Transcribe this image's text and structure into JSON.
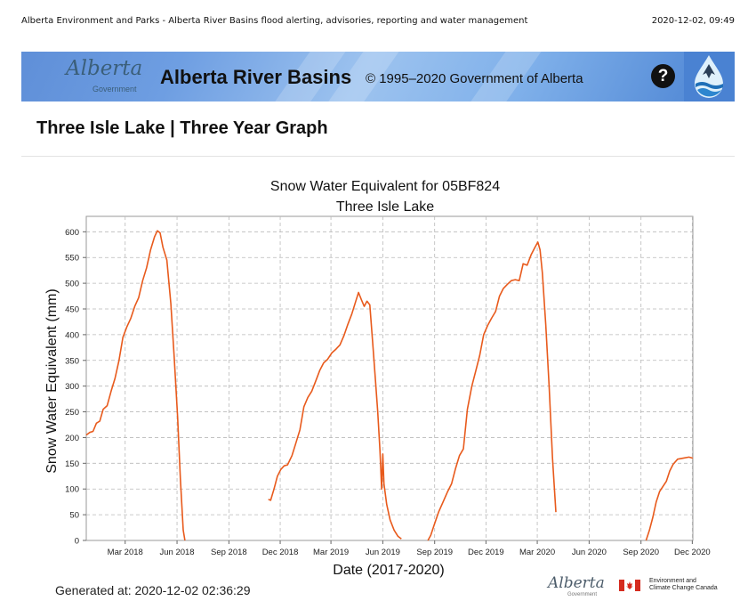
{
  "print_header": {
    "left": "Alberta Environment and Parks - Alberta River Basins flood alerting, advisories, reporting and water management",
    "right": "2020-12-02, 09:49"
  },
  "banner": {
    "logo_text": "Alberta",
    "logo_sub": "Government",
    "title": "Alberta River Basins",
    "copyright": "© 1995–2020 Government of Alberta",
    "help_label": "?"
  },
  "page_title": "Three Isle Lake | Three Year Graph",
  "generated": "Generated at: 2020-12-02 02:36:29",
  "footer": {
    "alberta_logo": "Alberta",
    "alberta_sub": "Government",
    "eccc_line1": "Environment and",
    "eccc_line2": "Climate Change Canada"
  },
  "colors": {
    "series": "#e85a1c",
    "grid": "#b9b9b9",
    "banner": "#6e9ee2"
  },
  "chart_data": {
    "type": "line",
    "title": "Snow Water Equivalent for 05BF824",
    "subtitle": "Three Isle Lake",
    "xlabel": "Date (2017-2020)",
    "ylabel": "Snow Water Equivalent (mm)",
    "x_range": [
      "2017-12-22",
      "2020-12-02"
    ],
    "ylim": [
      0,
      630
    ],
    "yticks": [
      0,
      50,
      100,
      150,
      200,
      250,
      300,
      350,
      400,
      450,
      500,
      550,
      600
    ],
    "xticks": [
      {
        "date": "2018-03-01",
        "label": "Mar 2018"
      },
      {
        "date": "2018-06-01",
        "label": "Jun 2018"
      },
      {
        "date": "2018-09-01",
        "label": "Sep 2018"
      },
      {
        "date": "2018-12-01",
        "label": "Dec 2018"
      },
      {
        "date": "2019-03-01",
        "label": "Mar 2019"
      },
      {
        "date": "2019-06-01",
        "label": "Jun 2019"
      },
      {
        "date": "2019-09-01",
        "label": "Sep 2019"
      },
      {
        "date": "2019-12-01",
        "label": "Dec 2019"
      },
      {
        "date": "2020-03-01",
        "label": "Mar 2020"
      },
      {
        "date": "2020-06-01",
        "label": "Jun 2020"
      },
      {
        "date": "2020-09-01",
        "label": "Sep 2020"
      },
      {
        "date": "2020-12-01",
        "label": "Dec 2020"
      }
    ],
    "grid": true,
    "series": [
      {
        "values": [
          [
            [
              "2017-12-22",
              205
            ],
            [
              "2017-12-28",
              210
            ],
            [
              "2018-01-03",
              212
            ],
            [
              "2018-01-09",
              228
            ],
            [
              "2018-01-15",
              232
            ],
            [
              "2018-01-21",
              255
            ],
            [
              "2018-01-28",
              262
            ],
            [
              "2018-02-04",
              290
            ],
            [
              "2018-02-11",
              315
            ],
            [
              "2018-02-18",
              350
            ],
            [
              "2018-02-25",
              395
            ],
            [
              "2018-03-04",
              415
            ],
            [
              "2018-03-11",
              432
            ],
            [
              "2018-03-18",
              455
            ],
            [
              "2018-03-25",
              472
            ],
            [
              "2018-04-01",
              505
            ],
            [
              "2018-04-08",
              530
            ],
            [
              "2018-04-15",
              565
            ],
            [
              "2018-04-22",
              590
            ],
            [
              "2018-04-27",
              602
            ],
            [
              "2018-05-02",
              598
            ],
            [
              "2018-05-07",
              570
            ],
            [
              "2018-05-14",
              545
            ],
            [
              "2018-05-21",
              460
            ],
            [
              "2018-05-27",
              355
            ],
            [
              "2018-06-02",
              240
            ],
            [
              "2018-06-07",
              120
            ],
            [
              "2018-06-12",
              20
            ],
            [
              "2018-06-15",
              0
            ]
          ],
          [
            [
              "2018-11-10",
              80
            ],
            [
              "2018-11-14",
              78
            ],
            [
              "2018-11-20",
              100
            ],
            [
              "2018-11-26",
              125
            ],
            [
              "2018-12-02",
              138
            ],
            [
              "2018-12-08",
              145
            ],
            [
              "2018-12-14",
              147
            ],
            [
              "2018-12-22",
              165
            ],
            [
              "2018-12-29",
              190
            ],
            [
              "2019-01-05",
              215
            ],
            [
              "2019-01-12",
              260
            ],
            [
              "2019-01-19",
              278
            ],
            [
              "2019-01-26",
              290
            ],
            [
              "2019-02-02",
              310
            ],
            [
              "2019-02-09",
              330
            ],
            [
              "2019-02-16",
              345
            ],
            [
              "2019-02-23",
              352
            ],
            [
              "2019-03-03",
              365
            ],
            [
              "2019-03-10",
              372
            ],
            [
              "2019-03-17",
              380
            ],
            [
              "2019-03-24",
              398
            ],
            [
              "2019-03-31",
              420
            ],
            [
              "2019-04-07",
              440
            ],
            [
              "2019-04-14",
              465
            ],
            [
              "2019-04-19",
              482
            ],
            [
              "2019-04-24",
              468
            ],
            [
              "2019-04-29",
              455
            ],
            [
              "2019-05-04",
              465
            ],
            [
              "2019-05-09",
              458
            ],
            [
              "2019-05-14",
              385
            ],
            [
              "2019-05-19",
              310
            ],
            [
              "2019-05-23",
              250
            ],
            [
              "2019-05-27",
              175
            ],
            [
              "2019-05-30",
              100
            ],
            [
              "2019-06-01",
              168
            ],
            [
              "2019-06-03",
              110
            ],
            [
              "2019-06-08",
              70
            ],
            [
              "2019-06-14",
              40
            ],
            [
              "2019-06-21",
              20
            ],
            [
              "2019-06-28",
              8
            ],
            [
              "2019-07-04",
              3
            ]
          ],
          [
            [
              "2019-08-20",
              0
            ],
            [
              "2019-08-25",
              10
            ],
            [
              "2019-08-31",
              30
            ],
            [
              "2019-09-08",
              55
            ],
            [
              "2019-09-16",
              75
            ],
            [
              "2019-09-24",
              95
            ],
            [
              "2019-10-01",
              110
            ],
            [
              "2019-10-08",
              140
            ],
            [
              "2019-10-15",
              165
            ],
            [
              "2019-10-22",
              178
            ],
            [
              "2019-10-29",
              255
            ],
            [
              "2019-11-06",
              300
            ],
            [
              "2019-11-13",
              330
            ],
            [
              "2019-11-20",
              360
            ],
            [
              "2019-11-27",
              400
            ],
            [
              "2019-12-04",
              418
            ],
            [
              "2019-12-11",
              432
            ],
            [
              "2019-12-18",
              445
            ],
            [
              "2019-12-25",
              475
            ],
            [
              "2020-01-01",
              490
            ],
            [
              "2020-01-08",
              498
            ],
            [
              "2020-01-15",
              505
            ],
            [
              "2020-01-22",
              507
            ],
            [
              "2020-01-29",
              505
            ],
            [
              "2020-02-05",
              538
            ],
            [
              "2020-02-12",
              535
            ],
            [
              "2020-02-19",
              555
            ],
            [
              "2020-02-26",
              570
            ],
            [
              "2020-03-02",
              580
            ],
            [
              "2020-03-06",
              565
            ],
            [
              "2020-03-10",
              520
            ],
            [
              "2020-03-16",
              420
            ],
            [
              "2020-03-22",
              300
            ],
            [
              "2020-03-28",
              160
            ],
            [
              "2020-04-03",
              55
            ]
          ],
          [
            [
              "2020-09-10",
              0
            ],
            [
              "2020-09-16",
              20
            ],
            [
              "2020-09-22",
              45
            ],
            [
              "2020-09-28",
              75
            ],
            [
              "2020-10-04",
              95
            ],
            [
              "2020-10-10",
              105
            ],
            [
              "2020-10-16",
              115
            ],
            [
              "2020-10-22",
              135
            ],
            [
              "2020-10-28",
              148
            ],
            [
              "2020-11-05",
              158
            ],
            [
              "2020-11-15",
              160
            ],
            [
              "2020-11-25",
              162
            ],
            [
              "2020-12-02",
              160
            ]
          ]
        ]
      }
    ]
  }
}
